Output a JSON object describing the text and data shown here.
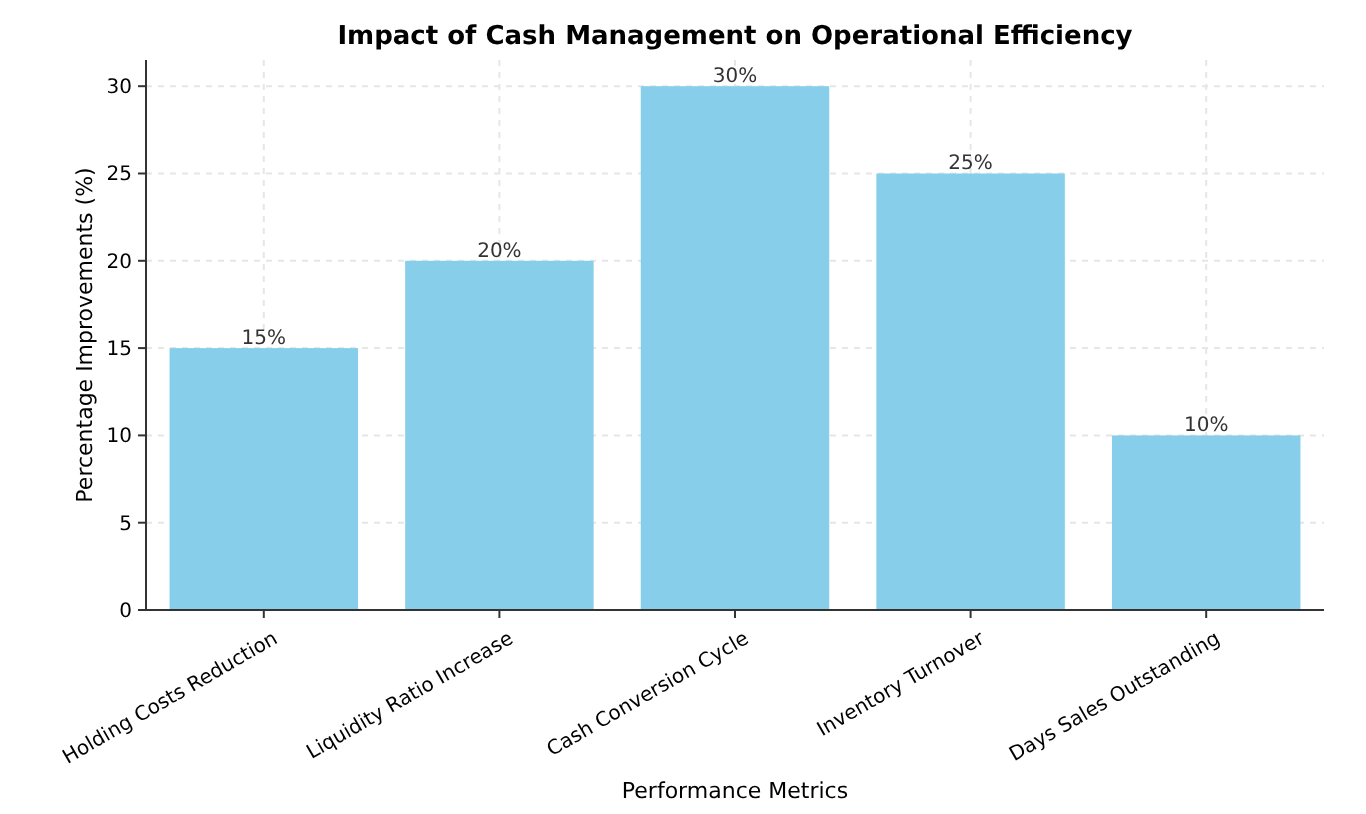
{
  "chart_data": {
    "type": "bar",
    "title": "Impact of Cash Management on Operational Efficiency",
    "xlabel": "Performance Metrics",
    "ylabel": "Percentage Improvements (%)",
    "categories": [
      "Holding Costs Reduction",
      "Liquidity Ratio Increase",
      "Cash Conversion Cycle",
      "Inventory Turnover",
      "Days Sales Outstanding"
    ],
    "values": [
      15,
      20,
      30,
      25,
      10
    ],
    "value_labels": [
      "15%",
      "20%",
      "30%",
      "25%",
      "10%"
    ],
    "color": "#87ceeb",
    "ylim": [
      0,
      31.5
    ],
    "yticks": [
      0,
      5,
      10,
      15,
      20,
      25,
      30
    ],
    "grid": true
  }
}
